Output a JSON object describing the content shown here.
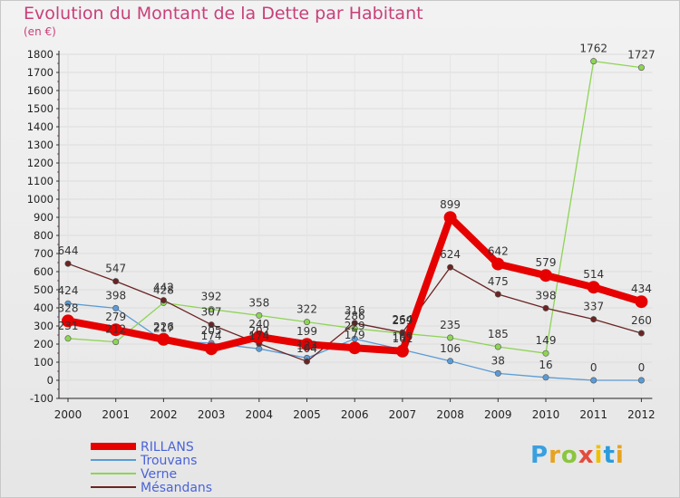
{
  "title": "Evolution du Montant de la Dette par Habitant",
  "unit": "(en €)",
  "logo": "Proxiti",
  "chart_data": {
    "type": "line",
    "title": "Evolution du Montant de la Dette par Habitant",
    "ylabel": "(en €)",
    "ylim": [
      -100,
      1800
    ],
    "yticks": [
      -100,
      0,
      100,
      200,
      300,
      400,
      500,
      600,
      700,
      800,
      900,
      1000,
      1100,
      1200,
      1300,
      1400,
      1500,
      1600,
      1700,
      1800
    ],
    "x": [
      "2000",
      "2001",
      "2002",
      "2003",
      "2004",
      "2005",
      "2006",
      "2007",
      "2008",
      "2009",
      "2010",
      "2011",
      "2012"
    ],
    "series": [
      {
        "name": "RILLANS",
        "color": "#e60000",
        "values": [
          328,
          279,
          226,
          174,
          240,
          199,
          179,
          161,
          899,
          642,
          579,
          514,
          434
        ]
      },
      {
        "name": "Trouvans",
        "color": "#5b9bd5",
        "values": [
          424,
          398,
          217,
          205,
          174,
          123,
          229,
          169,
          106,
          38,
          16,
          0,
          0
        ]
      },
      {
        "name": "Verne",
        "color": "#8ed456",
        "values": [
          231,
          212,
          428,
          392,
          358,
          322,
          286,
          259,
          235,
          185,
          149,
          1762,
          1727
        ]
      },
      {
        "name": "Mésandans",
        "color": "#6b2424",
        "values": [
          644,
          547,
          442,
          307,
          202,
          104,
          316,
          264,
          624,
          475,
          398,
          337,
          260
        ]
      }
    ]
  }
}
